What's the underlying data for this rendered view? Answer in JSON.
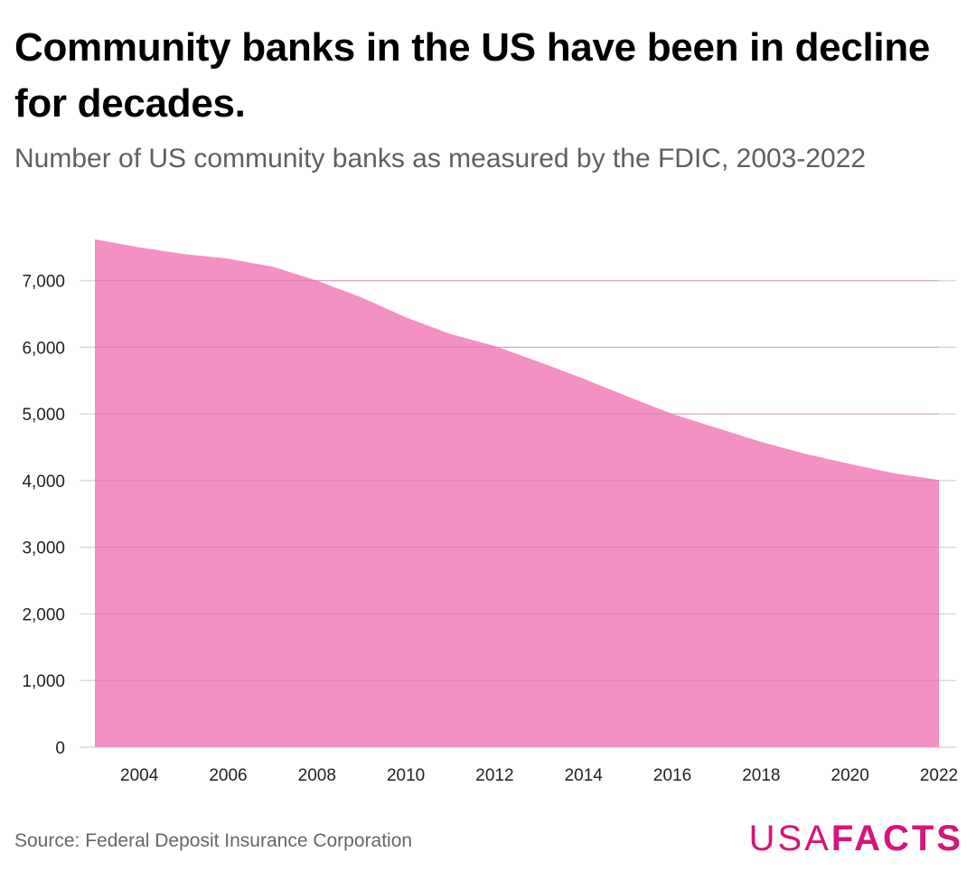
{
  "header": {
    "title": "Community banks in the US have been in decline for decades.",
    "subtitle": "Number of US community banks as measured by the FDIC, 2003-2022"
  },
  "footer": {
    "source": "Source: Federal Deposit Insurance Corporation",
    "logo_light": "USA",
    "logo_bold": "FACTS"
  },
  "colors": {
    "area_fill": "#f391c4",
    "gridline": "#d9d9d9",
    "logo": "#d6147b"
  },
  "chart_data": {
    "type": "area",
    "title": "Community banks in the US have been in decline for decades.",
    "subtitle": "Number of US community banks as measured by the FDIC, 2003-2022",
    "xlabel": "",
    "ylabel": "",
    "x": [
      2003,
      2004,
      2005,
      2006,
      2007,
      2008,
      2009,
      2010,
      2011,
      2012,
      2013,
      2014,
      2015,
      2016,
      2017,
      2018,
      2019,
      2020,
      2021,
      2022
    ],
    "values": [
      7620,
      7500,
      7400,
      7330,
      7210,
      7000,
      6750,
      6450,
      6200,
      6020,
      5780,
      5530,
      5260,
      5000,
      4790,
      4580,
      4400,
      4250,
      4110,
      4010
    ],
    "xlim": [
      2003,
      2022
    ],
    "ylim": [
      0,
      7700
    ],
    "x_ticks": [
      "2004",
      "2006",
      "2008",
      "2010",
      "2012",
      "2014",
      "2016",
      "2018",
      "2020",
      "2022"
    ],
    "y_ticks": [
      "0",
      "1,000",
      "2,000",
      "3,000",
      "4,000",
      "5,000",
      "6,000",
      "7,000"
    ],
    "grid": "horizontal",
    "legend": "none"
  }
}
